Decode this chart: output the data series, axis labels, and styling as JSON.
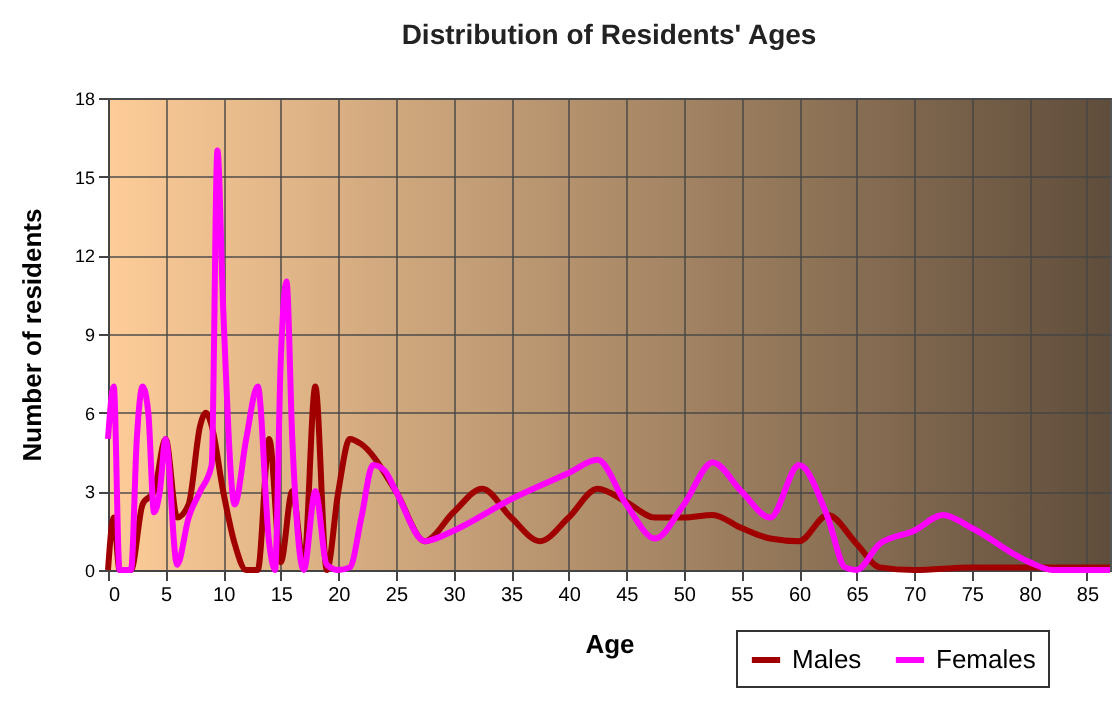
{
  "chart_data": {
    "type": "line",
    "title": "Distribution of Residents' Ages",
    "xlabel": "Age",
    "ylabel": "Number of residents",
    "xlim": [
      0,
      87
    ],
    "xticks": [
      0,
      5,
      10,
      15,
      20,
      25,
      30,
      35,
      40,
      45,
      50,
      55,
      60,
      65,
      70,
      75,
      80,
      85
    ],
    "ylim": [
      0,
      18
    ],
    "yticks": [
      0,
      3,
      6,
      9,
      12,
      15,
      18
    ],
    "grid": true,
    "legend": "bottom right",
    "series": [
      {
        "name": "Males",
        "color": "#a00000",
        "x": [
          0,
          0.5,
          1,
          2,
          3,
          4,
          5,
          6,
          7,
          8,
          8.5,
          9,
          10,
          11,
          12,
          13,
          14,
          15,
          16,
          17,
          18,
          19,
          20,
          21,
          22,
          25,
          27.5,
          30,
          32.5,
          35,
          37.5,
          40,
          42.5,
          45,
          47.5,
          50,
          52.5,
          55,
          57.5,
          60,
          62.5,
          65,
          67,
          70,
          75,
          80,
          87
        ],
        "values": [
          0,
          2,
          0,
          0,
          2.5,
          3,
          5,
          2,
          2.5,
          5.5,
          6,
          5.5,
          3,
          1,
          0,
          0,
          5,
          0.3,
          3,
          0.2,
          7,
          0,
          3,
          5,
          4.8,
          3,
          1.1,
          2.2,
          3.1,
          2,
          1.1,
          2,
          3.1,
          2.6,
          2,
          2,
          2.1,
          1.6,
          1.2,
          1.1,
          2.1,
          1,
          0.1,
          0,
          0.1,
          0.1,
          0.1
        ]
      },
      {
        "name": "Females",
        "color": "#ff00ff",
        "x": [
          0,
          0.5,
          1,
          2,
          2.5,
          3,
          3.5,
          4,
          4.5,
          5,
          6,
          7,
          8,
          9,
          9.5,
          10,
          11,
          12,
          13,
          14,
          14.5,
          15,
          15.5,
          16,
          17,
          18,
          19,
          20,
          21,
          22,
          23,
          24,
          25,
          27.5,
          30,
          35,
          40,
          42.5,
          45,
          47.5,
          50,
          52.5,
          55,
          57.5,
          60,
          62.5,
          64,
          65,
          67,
          70,
          72.5,
          75,
          80,
          82,
          87
        ],
        "values": [
          5,
          7,
          0,
          0,
          5,
          7,
          6,
          2.2,
          3,
          5,
          0.2,
          2,
          3,
          4,
          16,
          10,
          2.5,
          5,
          7,
          1,
          0,
          8,
          11,
          5,
          0,
          3,
          0.2,
          0,
          0.1,
          2,
          4,
          3.8,
          3,
          1.1,
          1.5,
          2.7,
          3.7,
          4.2,
          2.5,
          1.2,
          2.5,
          4.1,
          3,
          2,
          4,
          2,
          0.1,
          0,
          1,
          1.5,
          2.1,
          1.6,
          0.3,
          0,
          0
        ]
      }
    ]
  }
}
